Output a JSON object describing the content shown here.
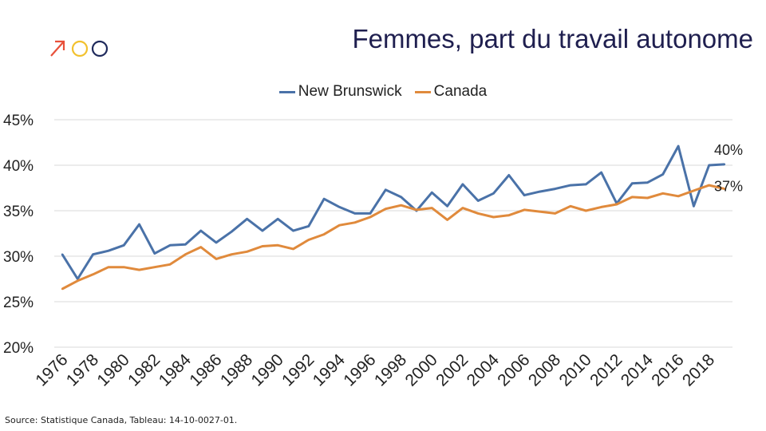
{
  "title": "Femmes, part du travail autonome",
  "source": "Source: Statistique Canada, Tableau:  14-10-0027-01.",
  "logo": {
    "icon": "arrow-circles-logo",
    "colors": [
      "#e8503a",
      "#f2c12e",
      "#1f2a5c"
    ]
  },
  "colors": {
    "new_brunswick": "#4a72a8",
    "canada": "#e08a3c",
    "grid": "#d9d9d9"
  },
  "chart_data": {
    "type": "line",
    "title": "Femmes, part du travail autonome",
    "xlabel": "",
    "ylabel": "",
    "ylim": [
      0.2,
      0.45
    ],
    "yticks": [
      0.2,
      0.25,
      0.3,
      0.35,
      0.4,
      0.45
    ],
    "ytick_labels": [
      "20%",
      "25%",
      "30%",
      "35%",
      "40%",
      "45%"
    ],
    "xtick_labels": [
      "1976",
      "1978",
      "1980",
      "1982",
      "1984",
      "1986",
      "1988",
      "1990",
      "1992",
      "1994",
      "1996",
      "1998",
      "2000",
      "2002",
      "2004",
      "2006",
      "2008",
      "2010",
      "2012",
      "2014",
      "2016",
      "2018"
    ],
    "grid": true,
    "legend_position": "top-center",
    "x": [
      1976,
      1977,
      1978,
      1979,
      1980,
      1981,
      1982,
      1983,
      1984,
      1985,
      1986,
      1987,
      1988,
      1989,
      1990,
      1991,
      1992,
      1993,
      1994,
      1995,
      1996,
      1997,
      1998,
      1999,
      2000,
      2001,
      2002,
      2003,
      2004,
      2005,
      2006,
      2007,
      2008,
      2009,
      2010,
      2011,
      2012,
      2013,
      2014,
      2015,
      2016,
      2017,
      2018,
      2019
    ],
    "series": [
      {
        "name": "New Brunswick",
        "values": [
          0.302,
          0.275,
          0.302,
          0.306,
          0.312,
          0.335,
          0.303,
          0.312,
          0.313,
          0.328,
          0.315,
          0.327,
          0.341,
          0.328,
          0.341,
          0.328,
          0.333,
          0.363,
          0.354,
          0.347,
          0.347,
          0.373,
          0.365,
          0.35,
          0.37,
          0.355,
          0.379,
          0.361,
          0.369,
          0.389,
          0.367,
          0.371,
          0.374,
          0.378,
          0.379,
          0.392,
          0.358,
          0.38,
          0.381,
          0.39,
          0.421,
          0.355,
          0.4,
          0.401
        ]
      },
      {
        "name": "Canada",
        "values": [
          0.264,
          0.273,
          0.28,
          0.288,
          0.288,
          0.285,
          0.288,
          0.291,
          0.302,
          0.31,
          0.297,
          0.302,
          0.305,
          0.311,
          0.312,
          0.308,
          0.318,
          0.324,
          0.334,
          0.337,
          0.343,
          0.352,
          0.356,
          0.351,
          0.353,
          0.34,
          0.353,
          0.347,
          0.343,
          0.345,
          0.351,
          0.349,
          0.347,
          0.355,
          0.35,
          0.354,
          0.357,
          0.365,
          0.364,
          0.369,
          0.366,
          0.372,
          0.378,
          0.374
        ]
      }
    ],
    "annotations": [
      {
        "text": "40%",
        "series": "New Brunswick"
      },
      {
        "text": "37%",
        "series": "Canada"
      }
    ]
  }
}
